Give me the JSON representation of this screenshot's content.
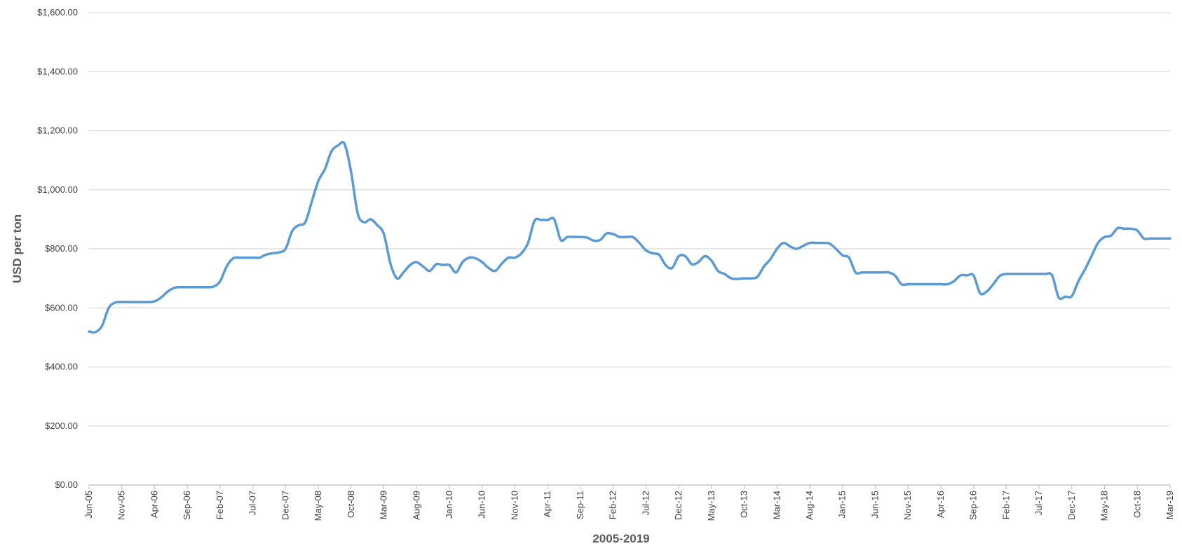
{
  "chart_data": {
    "type": "line",
    "x_label": "2005-2019",
    "y_label": "USD per ton",
    "categories": [
      "Jun-05",
      null,
      null,
      null,
      null,
      "Nov-05",
      null,
      null,
      null,
      null,
      "Apr-06",
      null,
      null,
      null,
      null,
      "Sep-06",
      null,
      null,
      null,
      null,
      "Feb-07",
      null,
      null,
      null,
      null,
      "Jul-07",
      null,
      null,
      null,
      null,
      "Dec-07",
      null,
      null,
      null,
      null,
      "May-08",
      null,
      null,
      null,
      null,
      "Oct-08",
      null,
      null,
      null,
      null,
      "Mar-09",
      null,
      null,
      null,
      null,
      "Aug-09",
      null,
      null,
      null,
      null,
      "Jan-10",
      null,
      null,
      null,
      null,
      "Jun-10",
      null,
      null,
      null,
      null,
      "Nov-10",
      null,
      null,
      null,
      null,
      "Apr-11",
      null,
      null,
      null,
      null,
      "Sep-11",
      null,
      null,
      null,
      null,
      "Feb-12",
      null,
      null,
      null,
      null,
      "Jul-12",
      null,
      null,
      null,
      null,
      "Dec-12",
      null,
      null,
      null,
      null,
      "May-13",
      null,
      null,
      null,
      null,
      "Oct-13",
      null,
      null,
      null,
      null,
      "Mar-14",
      null,
      null,
      null,
      null,
      "Aug-14",
      null,
      null,
      null,
      null,
      "Jan-15",
      null,
      null,
      null,
      null,
      "Jun-15",
      null,
      null,
      null,
      null,
      "Nov-15",
      null,
      null,
      null,
      null,
      "Apr-16",
      null,
      null,
      null,
      null,
      "Sep-16",
      null,
      null,
      null,
      null,
      "Feb-17",
      null,
      null,
      null,
      null,
      "Jul-17",
      null,
      null,
      null,
      null,
      "Dec-17",
      null,
      null,
      null,
      null,
      "May-18",
      null,
      null,
      null,
      null,
      "Oct-18",
      null,
      null,
      null,
      null,
      "Mar-19"
    ],
    "values": [
      520,
      518,
      540,
      600,
      618,
      620,
      620,
      620,
      620,
      620,
      622,
      635,
      655,
      668,
      670,
      670,
      670,
      670,
      670,
      672,
      690,
      740,
      768,
      770,
      770,
      770,
      770,
      780,
      785,
      788,
      800,
      860,
      880,
      890,
      960,
      1030,
      1070,
      1130,
      1150,
      1155,
      1060,
      920,
      890,
      900,
      880,
      850,
      750,
      700,
      720,
      745,
      755,
      740,
      725,
      748,
      745,
      745,
      720,
      755,
      770,
      768,
      755,
      735,
      725,
      750,
      770,
      770,
      785,
      820,
      895,
      898,
      898,
      900,
      830,
      840,
      840,
      840,
      838,
      828,
      830,
      852,
      850,
      840,
      840,
      840,
      820,
      795,
      785,
      780,
      745,
      735,
      775,
      775,
      748,
      755,
      775,
      760,
      725,
      715,
      700,
      698,
      700,
      700,
      705,
      740,
      765,
      800,
      820,
      808,
      800,
      810,
      820,
      820,
      820,
      818,
      800,
      778,
      770,
      720,
      720,
      720,
      720,
      720,
      720,
      710,
      680,
      680,
      680,
      680,
      680,
      680,
      680,
      680,
      690,
      710,
      710,
      710,
      650,
      655,
      680,
      708,
      715,
      715,
      715,
      715,
      715,
      715,
      715,
      710,
      635,
      638,
      640,
      690,
      730,
      775,
      820,
      840,
      845,
      870,
      868,
      868,
      862,
      835,
      835,
      835,
      835,
      835
    ],
    "color": "#5b9bd5",
    "ylim": [
      0,
      1600
    ],
    "yticks": [
      {
        "value": 0,
        "label": "$0.00"
      },
      {
        "value": 200,
        "label": "$200.00"
      },
      {
        "value": 400,
        "label": "$400.00"
      },
      {
        "value": 600,
        "label": "$600.00"
      },
      {
        "value": 800,
        "label": "$800.00"
      },
      {
        "value": 1000,
        "label": "$1,000.00"
      },
      {
        "value": 1200,
        "label": "$1,200.00"
      },
      {
        "value": 1400,
        "label": "$1,400.00"
      },
      {
        "value": 1600,
        "label": "$1,600.00"
      }
    ],
    "grid": true
  }
}
